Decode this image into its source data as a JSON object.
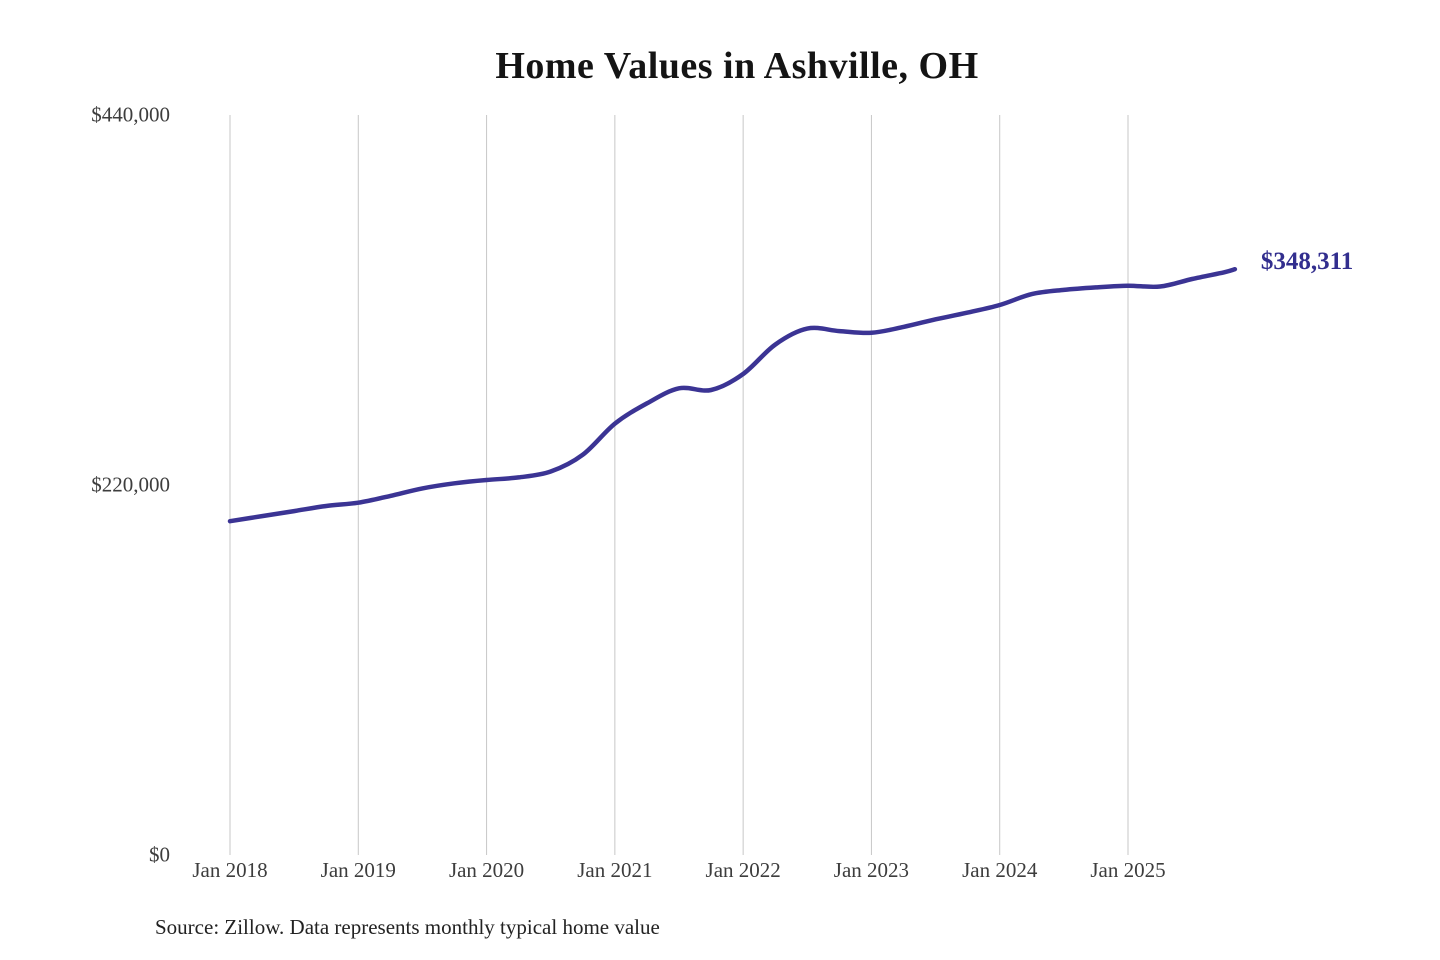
{
  "title": "Home Values in Ashville, OH",
  "annotation": {
    "label": "$348,311"
  },
  "source_note": "Source: Zillow. Data represents monthly typical home value",
  "colors": {
    "line": "#3b3494",
    "annotation_text": "#322e8e",
    "gridline": "#c7c7c7",
    "tick_text": "#3d3d3d",
    "title_text": "#141414"
  },
  "chart_data": {
    "type": "line",
    "title": "Home Values in Ashville, OH",
    "xlabel": "",
    "ylabel": "",
    "ylim": [
      0,
      440000
    ],
    "grid": "vertical-yearly-only",
    "legend": "none",
    "y_ticks": [
      {
        "value": 0,
        "label": "$0"
      },
      {
        "value": 220000,
        "label": "$220,000"
      },
      {
        "value": 440000,
        "label": "$440,000"
      }
    ],
    "x_ticks": [
      {
        "date": "2018-01",
        "label": "Jan 2018"
      },
      {
        "date": "2019-01",
        "label": "Jan 2019"
      },
      {
        "date": "2020-01",
        "label": "Jan 2020"
      },
      {
        "date": "2021-01",
        "label": "Jan 2021"
      },
      {
        "date": "2022-01",
        "label": "Jan 2022"
      },
      {
        "date": "2023-01",
        "label": "Jan 2023"
      },
      {
        "date": "2024-01",
        "label": "Jan 2024"
      },
      {
        "date": "2025-01",
        "label": "Jan 2025"
      }
    ],
    "series": [
      {
        "name": "Monthly typical home value",
        "end_label": "$348,311",
        "points": [
          [
            "2018-01",
            198500
          ],
          [
            "2018-04",
            201500
          ],
          [
            "2018-07",
            204500
          ],
          [
            "2018-10",
            207500
          ],
          [
            "2019-01",
            209500
          ],
          [
            "2019-04",
            213500
          ],
          [
            "2019-07",
            218000
          ],
          [
            "2019-10",
            221000
          ],
          [
            "2020-01",
            223000
          ],
          [
            "2020-04",
            224500
          ],
          [
            "2020-07",
            228000
          ],
          [
            "2020-10",
            238000
          ],
          [
            "2021-01",
            256500
          ],
          [
            "2021-04",
            268500
          ],
          [
            "2021-07",
            277500
          ],
          [
            "2021-10",
            276500
          ],
          [
            "2022-01",
            286000
          ],
          [
            "2022-04",
            303500
          ],
          [
            "2022-07",
            313000
          ],
          [
            "2022-10",
            311500
          ],
          [
            "2023-01",
            310500
          ],
          [
            "2023-04",
            314000
          ],
          [
            "2023-07",
            318500
          ],
          [
            "2023-10",
            322500
          ],
          [
            "2024-01",
            327000
          ],
          [
            "2024-04",
            333500
          ],
          [
            "2024-07",
            336000
          ],
          [
            "2024-10",
            337500
          ],
          [
            "2025-01",
            338500
          ],
          [
            "2025-04",
            338000
          ],
          [
            "2025-07",
            342500
          ],
          [
            "2025-10",
            346500
          ],
          [
            "2025-11",
            348311
          ]
        ]
      }
    ]
  }
}
